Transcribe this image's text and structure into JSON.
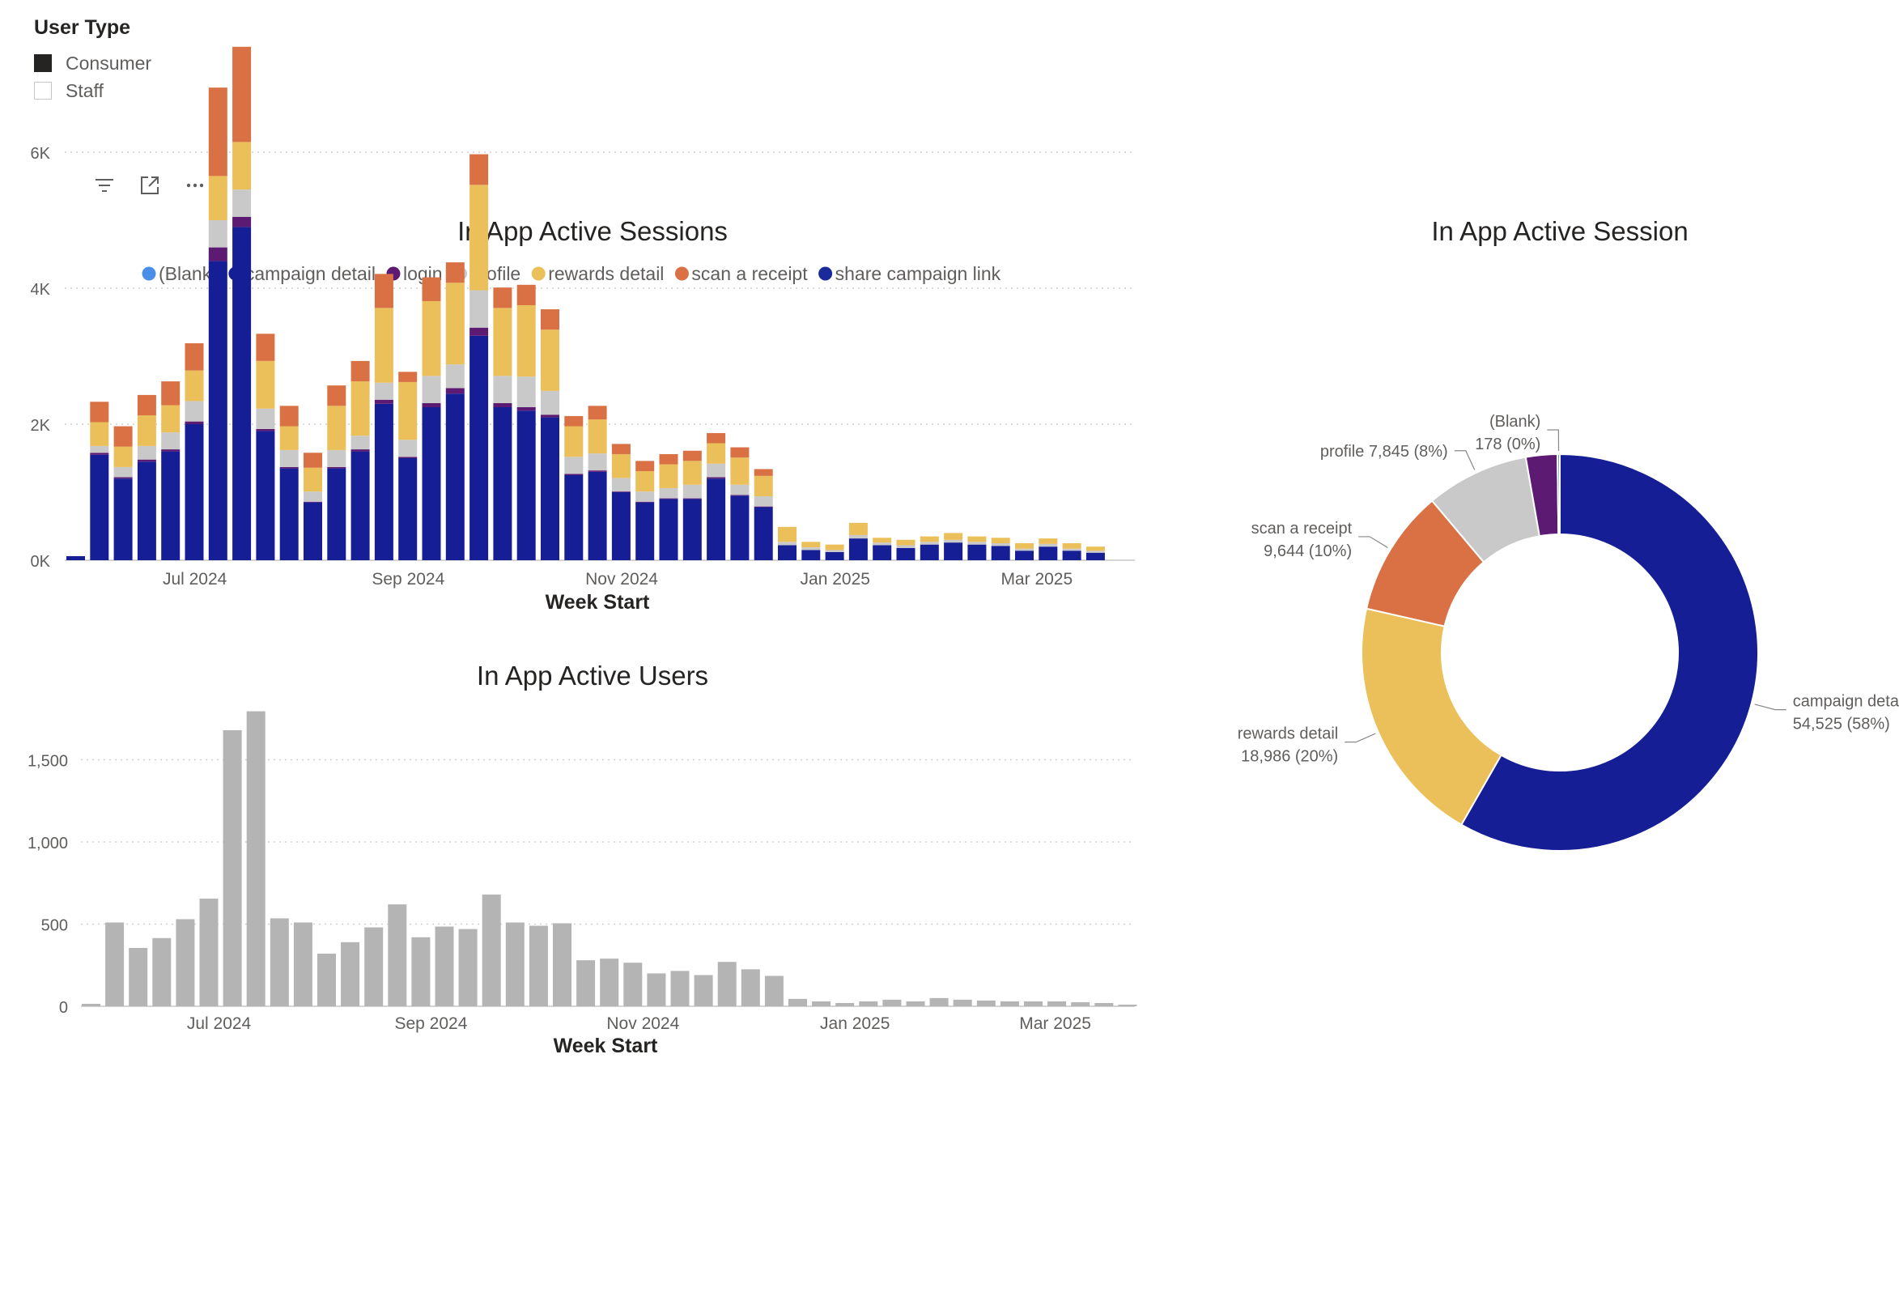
{
  "slicer": {
    "title": "User Type",
    "items": [
      {
        "label": "Consumer",
        "checked": true
      },
      {
        "label": "Staff",
        "checked": false
      }
    ]
  },
  "toolbar": {
    "icons": [
      "filter-icon",
      "focus-mode-icon",
      "more-options-icon"
    ]
  },
  "colors": {
    "blank": "#4a8fe7",
    "campaign_detail": "#161e96",
    "login": "#5c1a72",
    "profile": "#c9c9c9",
    "rewards_detail": "#ebbf5a",
    "scan_a_receipt": "#d97145",
    "share_campaign_link": "#1b2a9a",
    "users_bar": "#b4b4b4"
  },
  "chart_data": [
    {
      "type": "bar",
      "stacked": true,
      "title": "In App Active Sessions",
      "xlabel": "Week Start",
      "ylabel": "",
      "ylim": [
        0,
        7500
      ],
      "yticks": [
        0,
        2000,
        4000,
        6000
      ],
      "ytick_labels": [
        "0K",
        "2K",
        "4K",
        "6K"
      ],
      "xtick_labels": [
        "Jul 2024",
        "Sep 2024",
        "Nov 2024",
        "Jan 2025",
        "Mar 2025"
      ],
      "xtick_weeks": [
        5.5,
        14.5,
        23.5,
        32.5,
        41
      ],
      "legend": [
        "(Blank)",
        "campaign detail",
        "login",
        "profile",
        "rewards detail",
        "scan a receipt",
        "share campaign link"
      ],
      "series": [
        {
          "name": "(Blank)",
          "values": [
            0,
            0,
            0,
            0,
            0,
            0,
            0,
            0,
            0,
            0,
            0,
            0,
            0,
            0,
            0,
            0,
            0,
            0,
            0,
            0,
            0,
            0,
            0,
            0,
            0,
            0,
            0,
            0,
            0,
            0,
            0,
            0,
            0,
            0,
            0,
            0,
            0,
            0,
            0,
            0,
            0,
            0,
            0,
            0,
            0,
            0,
            0
          ]
        },
        {
          "name": "campaign detail",
          "values": [
            60,
            1550,
            1200,
            1450,
            1600,
            2000,
            4400,
            4900,
            1900,
            1350,
            850,
            1350,
            1600,
            2300,
            1500,
            2250,
            2450,
            3300,
            2250,
            2200,
            2100,
            1250,
            1300,
            1000,
            850,
            900,
            900,
            1200,
            950,
            780,
            220,
            150,
            120,
            320,
            220,
            180,
            230,
            260,
            230,
            210,
            140,
            200,
            140,
            110,
            0,
            0,
            0
          ]
        },
        {
          "name": "login",
          "values": [
            0,
            30,
            20,
            30,
            30,
            40,
            200,
            150,
            30,
            20,
            10,
            20,
            30,
            60,
            20,
            60,
            80,
            120,
            60,
            50,
            40,
            20,
            20,
            10,
            10,
            10,
            10,
            20,
            10,
            10,
            0,
            0,
            0,
            0,
            0,
            0,
            0,
            0,
            0,
            0,
            0,
            0,
            0,
            0,
            0,
            0,
            0
          ]
        },
        {
          "name": "profile",
          "values": [
            0,
            100,
            150,
            200,
            250,
            300,
            400,
            400,
            300,
            250,
            150,
            250,
            200,
            250,
            250,
            400,
            350,
            550,
            400,
            450,
            350,
            250,
            250,
            200,
            150,
            150,
            200,
            200,
            150,
            150,
            50,
            40,
            30,
            50,
            40,
            40,
            40,
            40,
            40,
            40,
            30,
            40,
            30,
            30,
            0,
            0,
            0
          ]
        },
        {
          "name": "rewards detail",
          "values": [
            0,
            350,
            300,
            450,
            400,
            450,
            650,
            700,
            700,
            350,
            350,
            650,
            800,
            1100,
            850,
            1100,
            1200,
            1550,
            1000,
            1050,
            900,
            450,
            500,
            350,
            300,
            350,
            350,
            300,
            400,
            300,
            220,
            80,
            80,
            180,
            70,
            80,
            80,
            100,
            80,
            80,
            80,
            80,
            80,
            60,
            0,
            0,
            0
          ]
        },
        {
          "name": "scan a receipt",
          "values": [
            0,
            300,
            300,
            300,
            350,
            400,
            1300,
            1400,
            400,
            300,
            220,
            300,
            300,
            500,
            150,
            350,
            300,
            450,
            300,
            300,
            300,
            150,
            200,
            150,
            150,
            150,
            150,
            150,
            150,
            100,
            0,
            0,
            0,
            0,
            0,
            0,
            0,
            0,
            0,
            0,
            0,
            0,
            0,
            0,
            0,
            0,
            0
          ]
        },
        {
          "name": "share campaign link",
          "values": [
            0,
            0,
            0,
            0,
            0,
            0,
            0,
            0,
            0,
            0,
            0,
            0,
            0,
            0,
            0,
            0,
            0,
            0,
            0,
            0,
            0,
            0,
            0,
            0,
            0,
            0,
            0,
            0,
            0,
            0,
            0,
            0,
            0,
            0,
            0,
            0,
            0,
            0,
            0,
            0,
            0,
            0,
            0,
            0,
            0,
            0,
            0
          ]
        }
      ]
    },
    {
      "type": "bar",
      "title": "In App Active Users",
      "xlabel": "Week Start",
      "ylabel": "",
      "ylim": [
        0,
        1800
      ],
      "yticks": [
        0,
        500,
        1000,
        1500
      ],
      "ytick_labels": [
        "0",
        "500",
        "1,000",
        "1,500"
      ],
      "xtick_labels": [
        "Jul 2024",
        "Sep 2024",
        "Nov 2024",
        "Jan 2025",
        "Mar 2025"
      ],
      "xtick_weeks": [
        5.5,
        14.5,
        23.5,
        32.5,
        41
      ],
      "values": [
        15,
        510,
        355,
        415,
        530,
        655,
        1680,
        1795,
        535,
        510,
        320,
        390,
        480,
        620,
        420,
        485,
        470,
        680,
        510,
        490,
        505,
        280,
        290,
        265,
        200,
        215,
        190,
        270,
        225,
        185,
        45,
        30,
        20,
        30,
        40,
        30,
        50,
        40,
        35,
        30,
        30,
        30,
        25,
        20,
        10
      ]
    },
    {
      "type": "pie",
      "donut": true,
      "title": "In App Active Session",
      "slices": [
        {
          "label": "campaign detail",
          "value": 54525,
          "value_label": "54,525 (58%)"
        },
        {
          "label": "rewards detail",
          "value": 18986,
          "value_label": "18,986 (20%)"
        },
        {
          "label": "scan a receipt",
          "value": 9644,
          "value_label": "9,644 (10%)"
        },
        {
          "label": "profile",
          "value": 7845,
          "value_label": "7,845 (8%)"
        },
        {
          "label": "login",
          "value": 2400,
          "value_label": ""
        },
        {
          "label": "(Blank)",
          "value": 178,
          "value_label": "178 (0%)"
        }
      ]
    }
  ]
}
